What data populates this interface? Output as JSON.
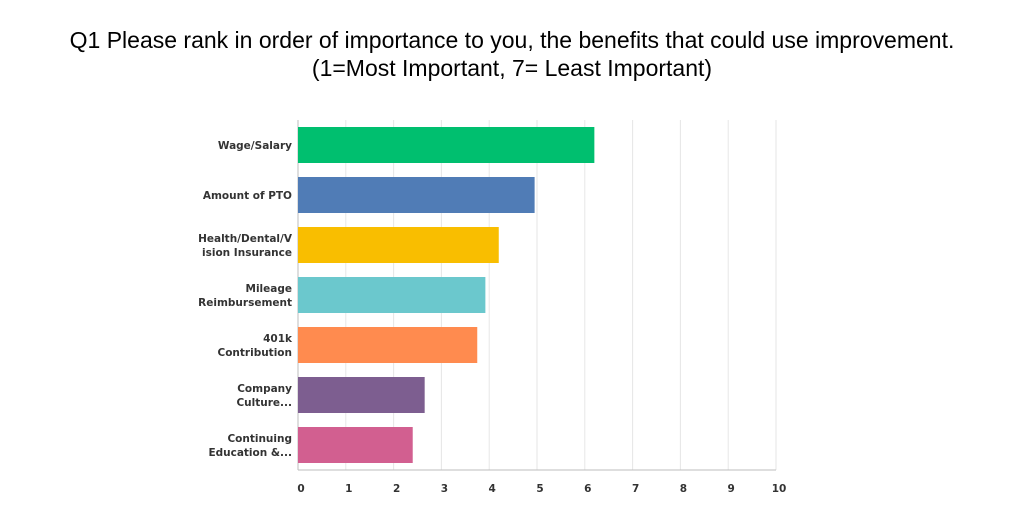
{
  "chart_data": {
    "type": "bar",
    "orientation": "horizontal",
    "title_line1": "Q1 Please rank in order of importance to you, the benefits that could use improvement.",
    "title_line2": "(1=Most Important, 7= Least Important)",
    "categories": [
      [
        "Wage/Salary"
      ],
      [
        "Amount of PTO"
      ],
      [
        "Health/Dental/V",
        "ision Insurance"
      ],
      [
        "Mileage",
        "Reimbursement"
      ],
      [
        "401k",
        "Contribution"
      ],
      [
        "Company",
        "Culture..."
      ],
      [
        "Continuing",
        "Education &..."
      ]
    ],
    "values": [
      6.2,
      4.95,
      4.2,
      3.92,
      3.75,
      2.65,
      2.4
    ],
    "colors": [
      "#00bf6f",
      "#507cb6",
      "#f9be00",
      "#6bc8cd",
      "#ff8b4f",
      "#7d5e90",
      "#d25f90"
    ],
    "xlim": [
      0,
      10
    ],
    "xticks": [
      "0",
      "1",
      "2",
      "3",
      "4",
      "5",
      "6",
      "7",
      "8",
      "9",
      "10"
    ],
    "grid": true,
    "xlabel": "",
    "ylabel": ""
  }
}
